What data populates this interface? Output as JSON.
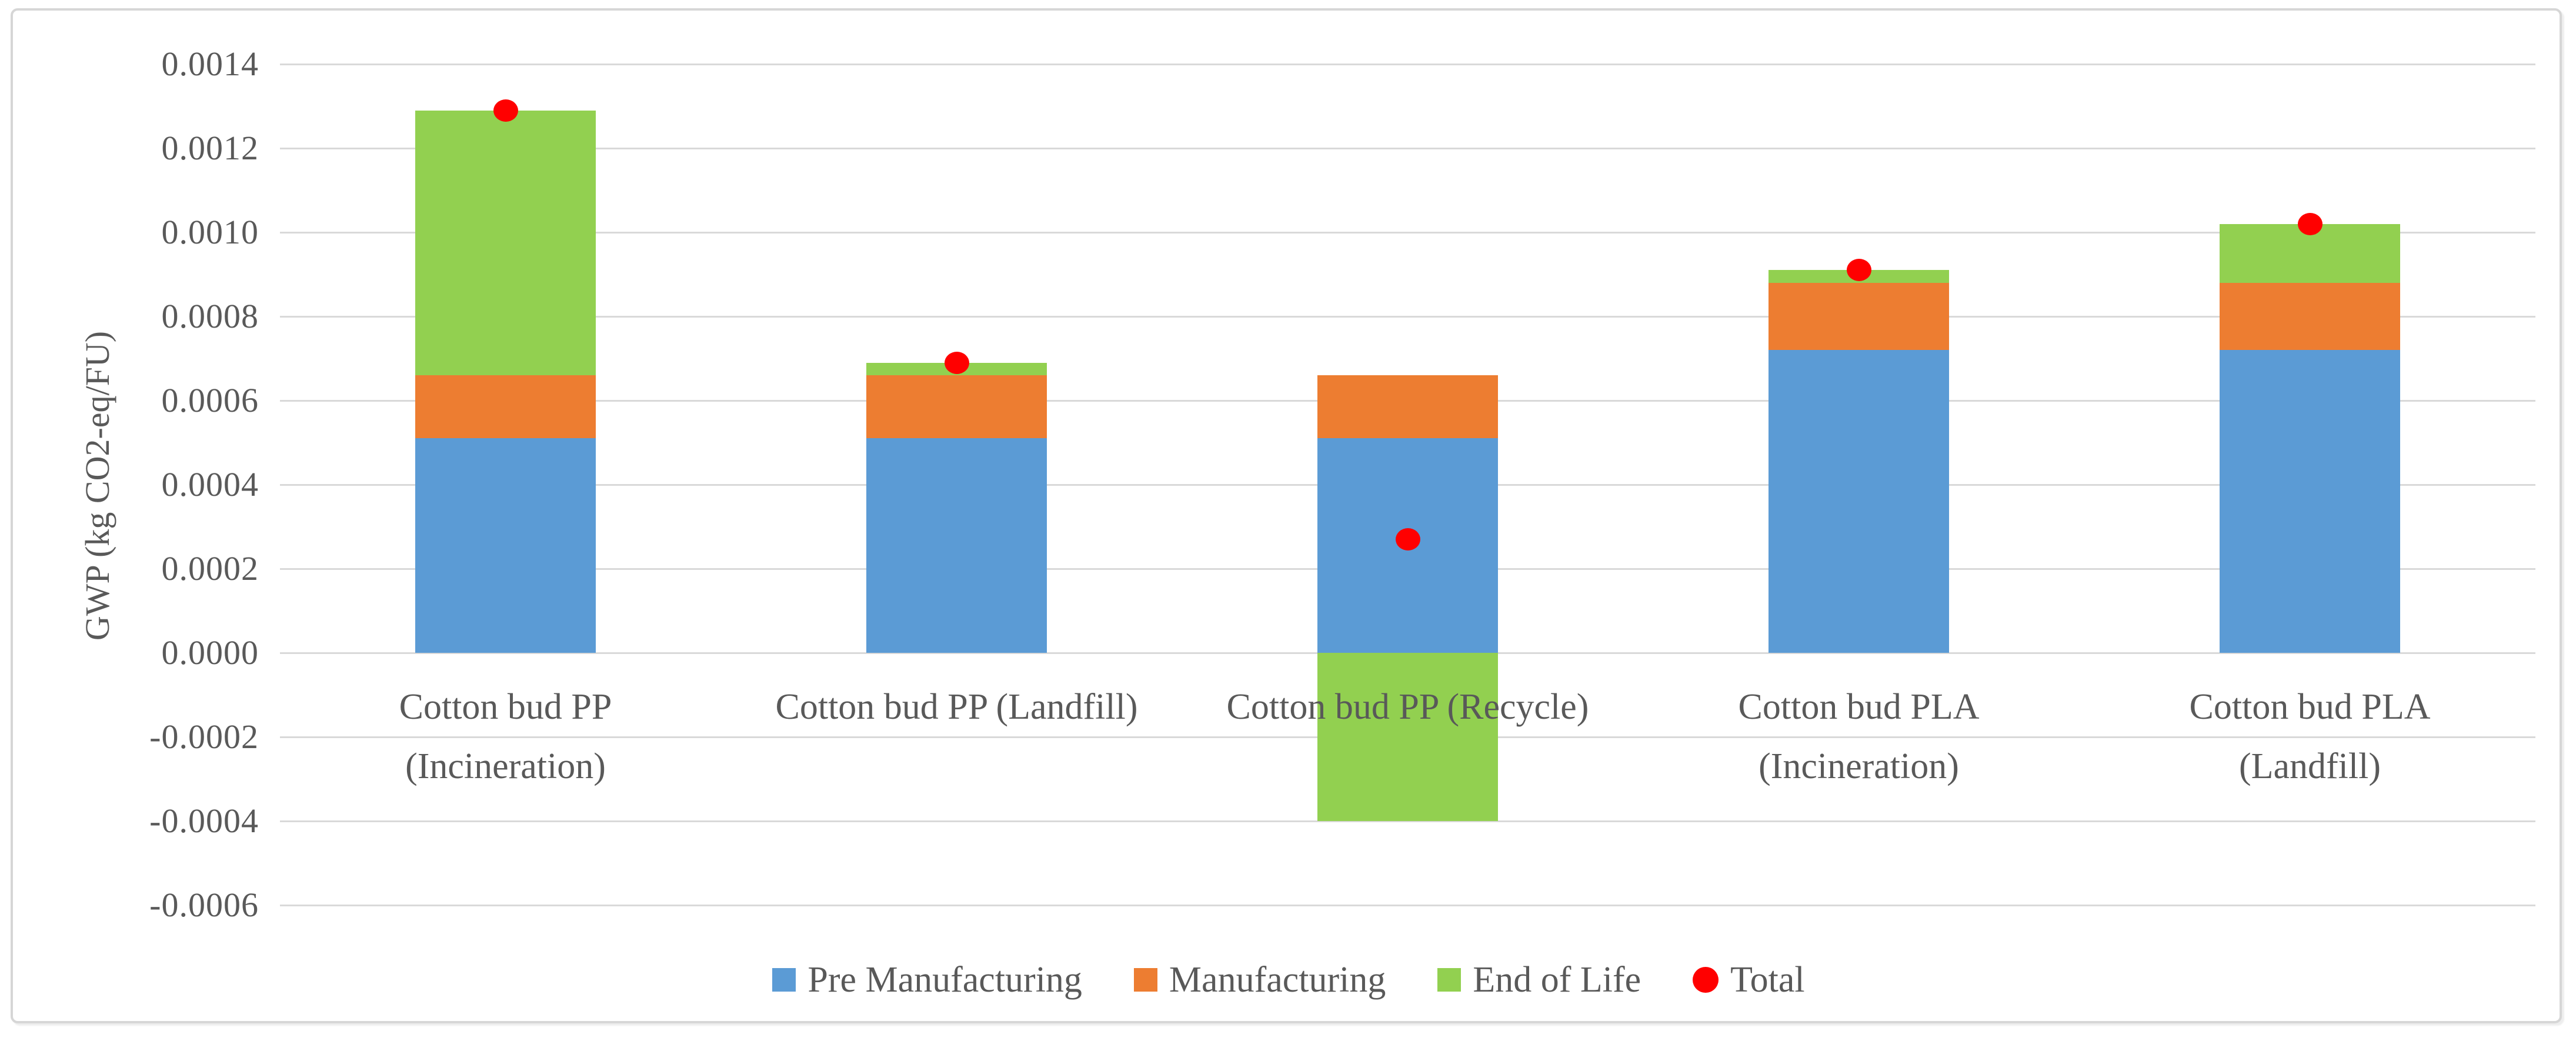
{
  "figure": {
    "background": "#ffffff",
    "border_color": "#d6d6d6"
  },
  "chart_data": {
    "type": "bar",
    "stacked": true,
    "title": "",
    "xlabel": "",
    "ylabel": "GWP (kg CO2-eq/FU)",
    "categories": [
      "Cotton bud PP (Incineration)",
      "Cotton bud PP (Landfill)",
      "Cotton bud PP (Recycle)",
      "Cotton bud PLA (Incineration)",
      "Cotton bud PLA (Landfill)"
    ],
    "category_lines": [
      [
        "Cotton bud PP",
        "(Incineration)"
      ],
      [
        "Cotton bud PP (Landfill)"
      ],
      [
        "Cotton bud PP (Recycle)"
      ],
      [
        "Cotton bud PLA",
        "(Incineration)"
      ],
      [
        "Cotton bud PLA",
        "(Landfill)"
      ]
    ],
    "series": [
      {
        "name": "Pre Manufacturing",
        "color": "#5B9BD5",
        "values": [
          0.00051,
          0.00051,
          0.00051,
          0.00072,
          0.00072
        ]
      },
      {
        "name": "Manufacturing",
        "color": "#ED7D31",
        "values": [
          0.00015,
          0.00015,
          0.00015,
          0.00016,
          0.00016
        ]
      },
      {
        "name": "End of Life",
        "color": "#92D050",
        "values": [
          0.00063,
          3e-05,
          -0.0004,
          3e-05,
          0.00014
        ]
      }
    ],
    "scatter_series": {
      "name": "Total",
      "color": "#FF0000",
      "marker": "circle",
      "values": [
        0.00129,
        0.00069,
        0.00027,
        0.00091,
        0.00102
      ]
    },
    "ylim": [
      -0.0006,
      0.0014
    ],
    "ytick_step": 0.0002,
    "ytick_labels": [
      "0.0014",
      "0.0012",
      "0.0010",
      "0.0008",
      "0.0006",
      "0.0004",
      "0.0002",
      "0.0000",
      "-0.0002",
      "-0.0004",
      "-0.0006"
    ],
    "grid": true,
    "grid_color": "#d9d9d9",
    "text_color": "#595959",
    "legend_position": "bottom",
    "legend": [
      {
        "label": "Pre Manufacturing",
        "color": "#5B9BD5",
        "marker": "square"
      },
      {
        "label": "Manufacturing",
        "color": "#ED7D31",
        "marker": "square"
      },
      {
        "label": "End of Life",
        "color": "#92D050",
        "marker": "square"
      },
      {
        "label": "Total",
        "color": "#FF0000",
        "marker": "circle"
      }
    ]
  }
}
